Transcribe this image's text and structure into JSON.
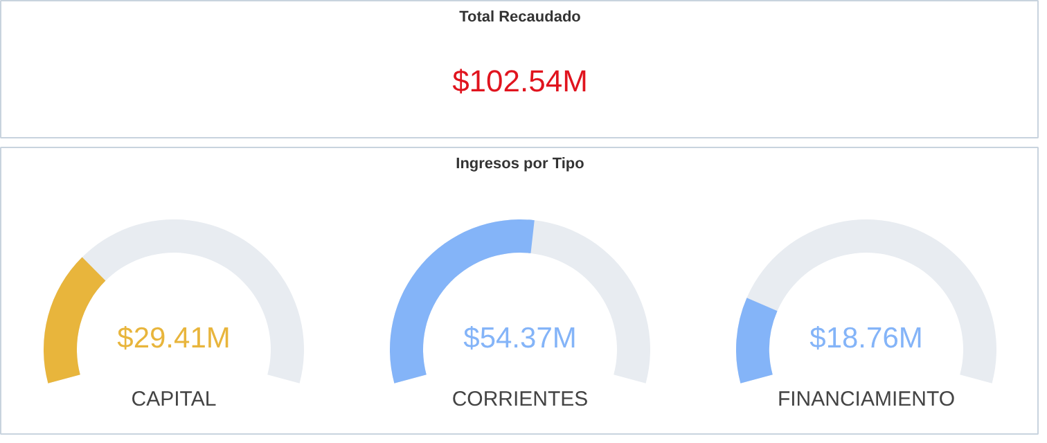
{
  "chart_data": [
    {
      "type": "other",
      "title": "Total Recaudado",
      "values": [
        102.54
      ],
      "value_labels": [
        "$102.54M"
      ]
    },
    {
      "type": "other",
      "title": "Ingresos por Tipo",
      "categories": [
        "CAPITAL",
        "CORRIENTES",
        "FINANCIAMIENTO"
      ],
      "values": [
        29.41,
        54.37,
        18.76
      ],
      "value_labels": [
        "$29.41M",
        "$54.37M",
        "$18.76M"
      ],
      "colors": [
        "#e8b53c",
        "#84b4f8",
        "#84b4f8"
      ]
    }
  ]
}
